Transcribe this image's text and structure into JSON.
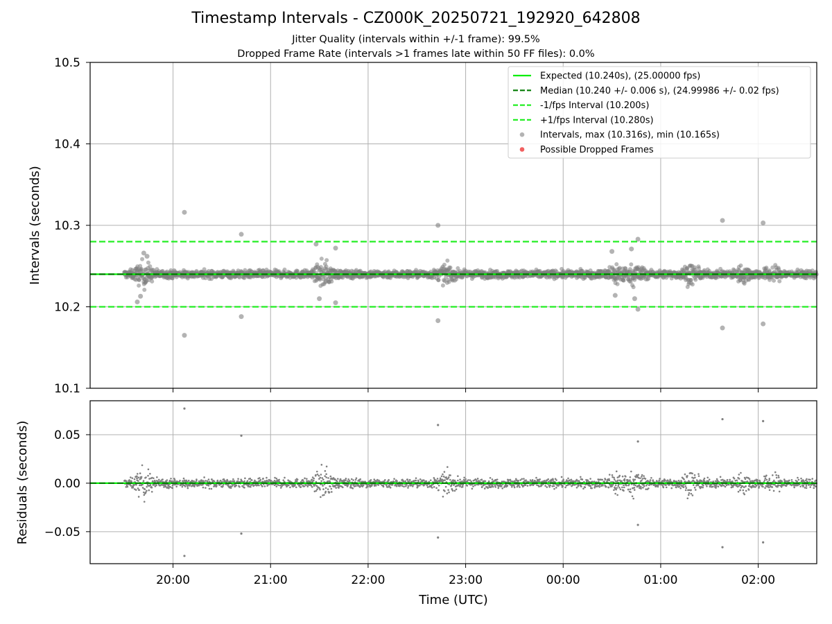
{
  "figure": {
    "title": "Timestamp Intervals - CZ000K_20250721_192920_642808",
    "subtitle_1": "Jitter Quality (intervals within +/-1 frame): 99.5%",
    "subtitle_2": "Dropped Frame Rate (intervals >1 frames late within 50 FF files): 0.0%",
    "xlabel": "Time (UTC)"
  },
  "colors": {
    "expected": "#00ee00",
    "median": "#007a00",
    "band": "#22ee22",
    "points": "#808080",
    "dropped": "#ee4444",
    "grid": "#b0b0b0"
  },
  "chart_data": [
    {
      "type": "scatter",
      "name": "intervals",
      "ylabel": "Intervals (seconds)",
      "ylim": [
        10.1,
        10.5
      ],
      "yticks": [
        10.1,
        10.2,
        10.3,
        10.4,
        10.5
      ],
      "ytick_labels": [
        "10.1",
        "10.2",
        "10.3",
        "10.4",
        "10.5"
      ],
      "x_range_hours": [
        "19:09",
        "02:36"
      ],
      "xticks": [
        "20:00",
        "21:00",
        "22:00",
        "23:00",
        "00:00",
        "01:00",
        "02:00"
      ],
      "grid": true,
      "legend_position": "upper right",
      "lines": [
        {
          "label": "Expected (10.240s), (25.00000 fps)",
          "y": 10.24,
          "style": "solid",
          "color_key": "expected"
        },
        {
          "label": "Median (10.240 +/- 0.006 s), (24.99986 +/- 0.02 fps)",
          "y": 10.24,
          "style": "dashed",
          "color_key": "median"
        },
        {
          "label": "-1/fps Interval (10.200s)",
          "y": 10.2,
          "style": "dashed",
          "color_key": "band"
        },
        {
          "label": "+1/fps Interval (10.280s)",
          "y": 10.28,
          "style": "dashed",
          "color_key": "band"
        }
      ],
      "scatter_legend": [
        {
          "label": "Intervals, max (10.316s), min (10.165s)",
          "color_key": "points"
        },
        {
          "label": "Possible Dropped Frames",
          "color_key": "dropped"
        }
      ],
      "points": [
        [
          "20:07",
          10.316
        ],
        [
          "20:07",
          10.165
        ],
        [
          "20:42",
          10.289
        ],
        [
          "20:42",
          10.188
        ],
        [
          "22:43",
          10.3
        ],
        [
          "22:43",
          10.183
        ],
        [
          "01:38",
          10.306
        ],
        [
          "01:38",
          10.174
        ],
        [
          "02:03",
          10.303
        ],
        [
          "02:03",
          10.179
        ],
        [
          "00:46",
          10.283
        ],
        [
          "00:46",
          10.197
        ],
        [
          "19:42",
          10.266
        ],
        [
          "19:44",
          10.262
        ],
        [
          "19:38",
          10.206
        ],
        [
          "19:40",
          10.213
        ],
        [
          "21:28",
          10.277
        ],
        [
          "21:30",
          10.21
        ],
        [
          "21:40",
          10.272
        ],
        [
          "21:40",
          10.205
        ],
        [
          "00:30",
          10.268
        ],
        [
          "00:32",
          10.214
        ],
        [
          "00:42",
          10.271
        ],
        [
          "00:44",
          10.21
        ]
      ]
    },
    {
      "type": "scatter",
      "name": "residuals",
      "ylabel": "Residuals (seconds)",
      "ylim": [
        -0.083,
        0.085
      ],
      "yticks": [
        -0.05,
        0.0,
        0.05
      ],
      "ytick_labels": [
        "−0.05",
        "0.00",
        "0.05"
      ],
      "grid": true,
      "points": [
        [
          "20:07",
          0.077
        ],
        [
          "20:07",
          -0.075
        ],
        [
          "20:42",
          0.049
        ],
        [
          "20:42",
          -0.052
        ],
        [
          "22:43",
          0.06
        ],
        [
          "22:43",
          -0.056
        ],
        [
          "01:38",
          0.066
        ],
        [
          "01:38",
          -0.066
        ],
        [
          "02:03",
          0.064
        ],
        [
          "02:03",
          -0.061
        ],
        [
          "00:46",
          0.043
        ],
        [
          "00:46",
          -0.043
        ]
      ]
    }
  ]
}
